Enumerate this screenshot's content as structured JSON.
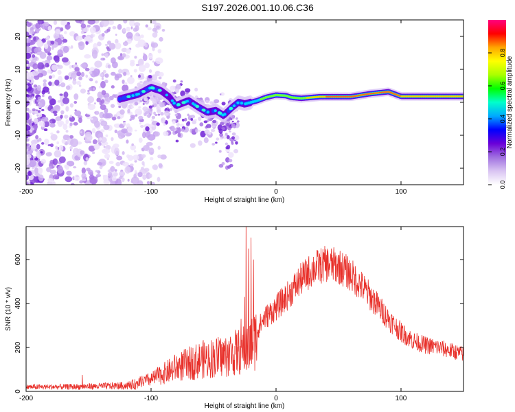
{
  "title": "S197.2026.001.10.06.C36",
  "spectrogram": {
    "type": "heatmap",
    "xlabel": "Height of straight line (km)",
    "ylabel": "Frequency (Hz)",
    "xlim": [
      -200,
      150
    ],
    "ylim": [
      -25,
      25
    ],
    "xticks": [
      -200,
      -100,
      0,
      100
    ],
    "yticks": [
      -20,
      -10,
      0,
      10,
      20
    ],
    "ridge": [
      {
        "x": -125,
        "y": 1.0
      },
      {
        "x": -110,
        "y": 2.5
      },
      {
        "x": -100,
        "y": 4.5
      },
      {
        "x": -92,
        "y": 3.5
      },
      {
        "x": -85,
        "y": 1.5
      },
      {
        "x": -80,
        "y": -1.0
      },
      {
        "x": -70,
        "y": 0.5
      },
      {
        "x": -62,
        "y": -1.5
      },
      {
        "x": -55,
        "y": -3.0
      },
      {
        "x": -48,
        "y": -2.5
      },
      {
        "x": -42,
        "y": -4.0
      },
      {
        "x": -35,
        "y": -1.5
      },
      {
        "x": -30,
        "y": 0.0
      },
      {
        "x": -25,
        "y": -0.5
      },
      {
        "x": -15,
        "y": 0.5
      },
      {
        "x": -8,
        "y": 1.5
      },
      {
        "x": 0,
        "y": 2.2
      },
      {
        "x": 8,
        "y": 2.0
      },
      {
        "x": 12,
        "y": 1.5
      },
      {
        "x": 20,
        "y": 1.2
      },
      {
        "x": 35,
        "y": 1.7
      },
      {
        "x": 60,
        "y": 1.7
      },
      {
        "x": 75,
        "y": 2.6
      },
      {
        "x": 90,
        "y": 3.2
      },
      {
        "x": 100,
        "y": 1.8
      },
      {
        "x": 120,
        "y": 1.8
      },
      {
        "x": 150,
        "y": 1.8
      }
    ]
  },
  "colorbar": {
    "label": "Normalized spectral amplitude",
    "range": [
      0,
      1
    ],
    "ticks": [
      "0.0",
      "0.2",
      "0.4",
      "0.6",
      "0.8"
    ],
    "tick_values": [
      0.0,
      0.2,
      0.4,
      0.6,
      0.8
    ],
    "stops": [
      "#ffffff",
      "#d9c4f2",
      "#a070e0",
      "#6a00d8",
      "#0000ff",
      "#00aaff",
      "#00ffcc",
      "#00ff00",
      "#aaff00",
      "#ffff00",
      "#ffa500",
      "#ff0000",
      "#ff007f"
    ]
  },
  "snr": {
    "type": "line",
    "xlabel": "Height of straight line (km)",
    "ylabel": "SNR (10 * v/v)",
    "xlim": [
      -200,
      150
    ],
    "ylim": [
      0,
      750
    ],
    "xticks": [
      -200,
      -100,
      0,
      100
    ],
    "yticks": [
      0,
      200,
      400,
      600
    ],
    "color": "#e8302a",
    "envelope": [
      {
        "x": -200,
        "y": 20
      },
      {
        "x": -160,
        "y": 22
      },
      {
        "x": -120,
        "y": 30
      },
      {
        "x": -100,
        "y": 60
      },
      {
        "x": -80,
        "y": 120
      },
      {
        "x": -60,
        "y": 160
      },
      {
        "x": -40,
        "y": 180
      },
      {
        "x": -30,
        "y": 200
      },
      {
        "x": -20,
        "y": 230
      },
      {
        "x": -10,
        "y": 330
      },
      {
        "x": 0,
        "y": 380
      },
      {
        "x": 10,
        "y": 440
      },
      {
        "x": 20,
        "y": 510
      },
      {
        "x": 30,
        "y": 560
      },
      {
        "x": 40,
        "y": 580
      },
      {
        "x": 50,
        "y": 570
      },
      {
        "x": 60,
        "y": 530
      },
      {
        "x": 70,
        "y": 470
      },
      {
        "x": 80,
        "y": 400
      },
      {
        "x": 90,
        "y": 330
      },
      {
        "x": 100,
        "y": 270
      },
      {
        "x": 110,
        "y": 230
      },
      {
        "x": 120,
        "y": 210
      },
      {
        "x": 130,
        "y": 200
      },
      {
        "x": 140,
        "y": 185
      },
      {
        "x": 150,
        "y": 170
      }
    ],
    "spikes": [
      {
        "x": -24,
        "y": 760
      },
      {
        "x": -22,
        "y": 650
      },
      {
        "x": -20,
        "y": 700
      },
      {
        "x": -25,
        "y": 430
      },
      {
        "x": -18,
        "y": 600
      },
      {
        "x": -28,
        "y": 330
      },
      {
        "x": -155,
        "y": 75
      }
    ]
  }
}
